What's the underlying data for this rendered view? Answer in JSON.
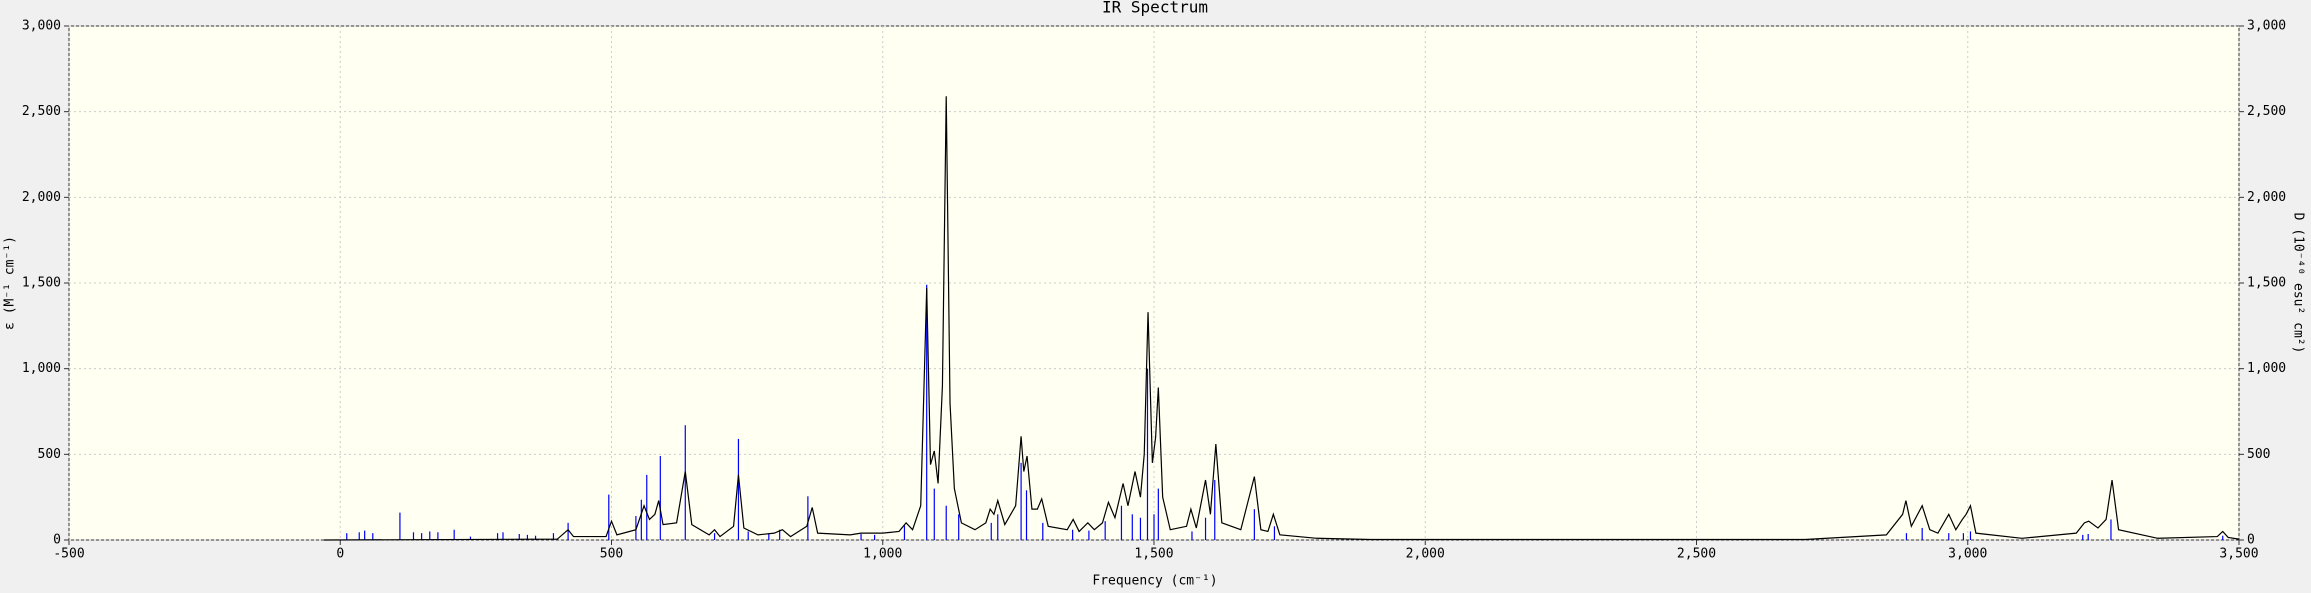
{
  "chart_data": {
    "type": "line",
    "title": "IR Spectrum",
    "x_label": "Frequency (cm⁻¹)",
    "y_label": "ε (M⁻¹ cm⁻¹)",
    "y2_label": "D (10⁻⁴⁰ esu² cm²)",
    "xlim": [
      -500,
      3500
    ],
    "xticks": [
      -500,
      0,
      500,
      {
        "value": 1000,
        "label": "1,000"
      },
      {
        "value": 1500,
        "label": "1,500"
      },
      {
        "value": 2000,
        "label": "2,000"
      },
      {
        "value": 2500,
        "label": "2,500"
      },
      {
        "value": 3000,
        "label": "3,000"
      },
      {
        "value": 3500,
        "label": "3,500"
      }
    ],
    "ylim": [
      0,
      3000
    ],
    "yticks": [
      0,
      500,
      {
        "value": 1000,
        "label": "1,000"
      },
      {
        "value": 1500,
        "label": "1,500"
      },
      {
        "value": 2000,
        "label": "2,000"
      },
      {
        "value": 2500,
        "label": "2,500"
      },
      {
        "value": 3000,
        "label": "3,000"
      }
    ],
    "y2lim": [
      0,
      3000
    ],
    "y2ticks": [
      0,
      500,
      {
        "value": 1000,
        "label": "1,000"
      },
      {
        "value": 1500,
        "label": "1,500"
      },
      {
        "value": 2000,
        "label": "2,000"
      },
      {
        "value": 2500,
        "label": "2,500"
      },
      {
        "value": 3000,
        "label": "3,000"
      }
    ],
    "grid": true,
    "series": [
      {
        "type": "line",
        "color": "#000000",
        "x": [
          -30,
          400,
          420,
          430,
          490,
          500,
          510,
          545,
          560,
          570,
          580,
          587,
          595,
          620,
          636,
          648,
          680,
          690,
          700,
          725,
          734,
          744,
          770,
          800,
          815,
          830,
          860,
          870,
          880,
          940,
          960,
          1000,
          1030,
          1043,
          1055,
          1070,
          1081,
          1088,
          1095,
          1102,
          1110,
          1117,
          1124,
          1132,
          1145,
          1170,
          1190,
          1198,
          1205,
          1212,
          1225,
          1245,
          1255,
          1260,
          1266,
          1275,
          1285,
          1293,
          1305,
          1340,
          1351,
          1362,
          1378,
          1390,
          1405,
          1416,
          1428,
          1443,
          1452,
          1465,
          1475,
          1482,
          1489,
          1497,
          1503,
          1508,
          1516,
          1530,
          1560,
          1568,
          1578,
          1595,
          1604,
          1614,
          1625,
          1660,
          1685,
          1697,
          1710,
          1720,
          1732,
          1800,
          1900,
          2700,
          2850,
          2880,
          2886,
          2896,
          2916,
          2930,
          2945,
          2965,
          2978,
          2990,
          2997,
          3005,
          3015,
          3100,
          3200,
          3215,
          3223,
          3240,
          3255,
          3266,
          3278,
          3350,
          3460,
          3470,
          3480,
          3500
        ],
        "values": [
          0,
          5,
          60,
          20,
          20,
          110,
          30,
          60,
          200,
          120,
          150,
          230,
          90,
          100,
          400,
          90,
          30,
          60,
          20,
          80,
          380,
          70,
          30,
          40,
          60,
          20,
          80,
          190,
          40,
          30,
          40,
          40,
          50,
          100,
          60,
          200,
          1470,
          440,
          520,
          330,
          900,
          2590,
          800,
          300,
          100,
          60,
          100,
          180,
          150,
          230,
          90,
          200,
          605,
          400,
          490,
          180,
          180,
          240,
          80,
          60,
          120,
          50,
          100,
          60,
          100,
          220,
          130,
          330,
          200,
          400,
          250,
          500,
          1330,
          450,
          600,
          890,
          250,
          60,
          80,
          180,
          70,
          350,
          150,
          560,
          100,
          60,
          370,
          60,
          50,
          150,
          30,
          10,
          3,
          3,
          30,
          150,
          230,
          80,
          200,
          60,
          40,
          150,
          60,
          120,
          150,
          200,
          40,
          10,
          40,
          100,
          110,
          70,
          120,
          350,
          60,
          10,
          20,
          50,
          15,
          5
        ]
      },
      {
        "type": "stick",
        "color": "#0000ff",
        "axis": "y2",
        "x": [
          12,
          35,
          45,
          60,
          110,
          135,
          150,
          165,
          180,
          210,
          240,
          290,
          300,
          330,
          345,
          360,
          393,
          420,
          495,
          545,
          555,
          565,
          590,
          636,
          690,
          734,
          752,
          790,
          810,
          862,
          960,
          985,
          1040,
          1081,
          1095,
          1117,
          1140,
          1200,
          1212,
          1255,
          1265,
          1295,
          1350,
          1380,
          1410,
          1440,
          1460,
          1475,
          1488,
          1500,
          1508,
          1570,
          1595,
          1612,
          1685,
          1722,
          2887,
          2916,
          2965,
          2992,
          3005,
          3212,
          3222,
          3264,
          3470
        ],
        "values": [
          40,
          45,
          55,
          40,
          160,
          45,
          40,
          50,
          45,
          60,
          20,
          40,
          45,
          35,
          30,
          25,
          40,
          100,
          265,
          140,
          235,
          380,
          490,
          670,
          40,
          590,
          50,
          40,
          60,
          255,
          35,
          30,
          85,
          1490,
          300,
          200,
          150,
          100,
          150,
          450,
          290,
          100,
          60,
          55,
          110,
          200,
          150,
          130,
          1000,
          150,
          300,
          50,
          130,
          350,
          180,
          80,
          40,
          70,
          40,
          40,
          50,
          30,
          35,
          120,
          25
        ]
      }
    ]
  }
}
